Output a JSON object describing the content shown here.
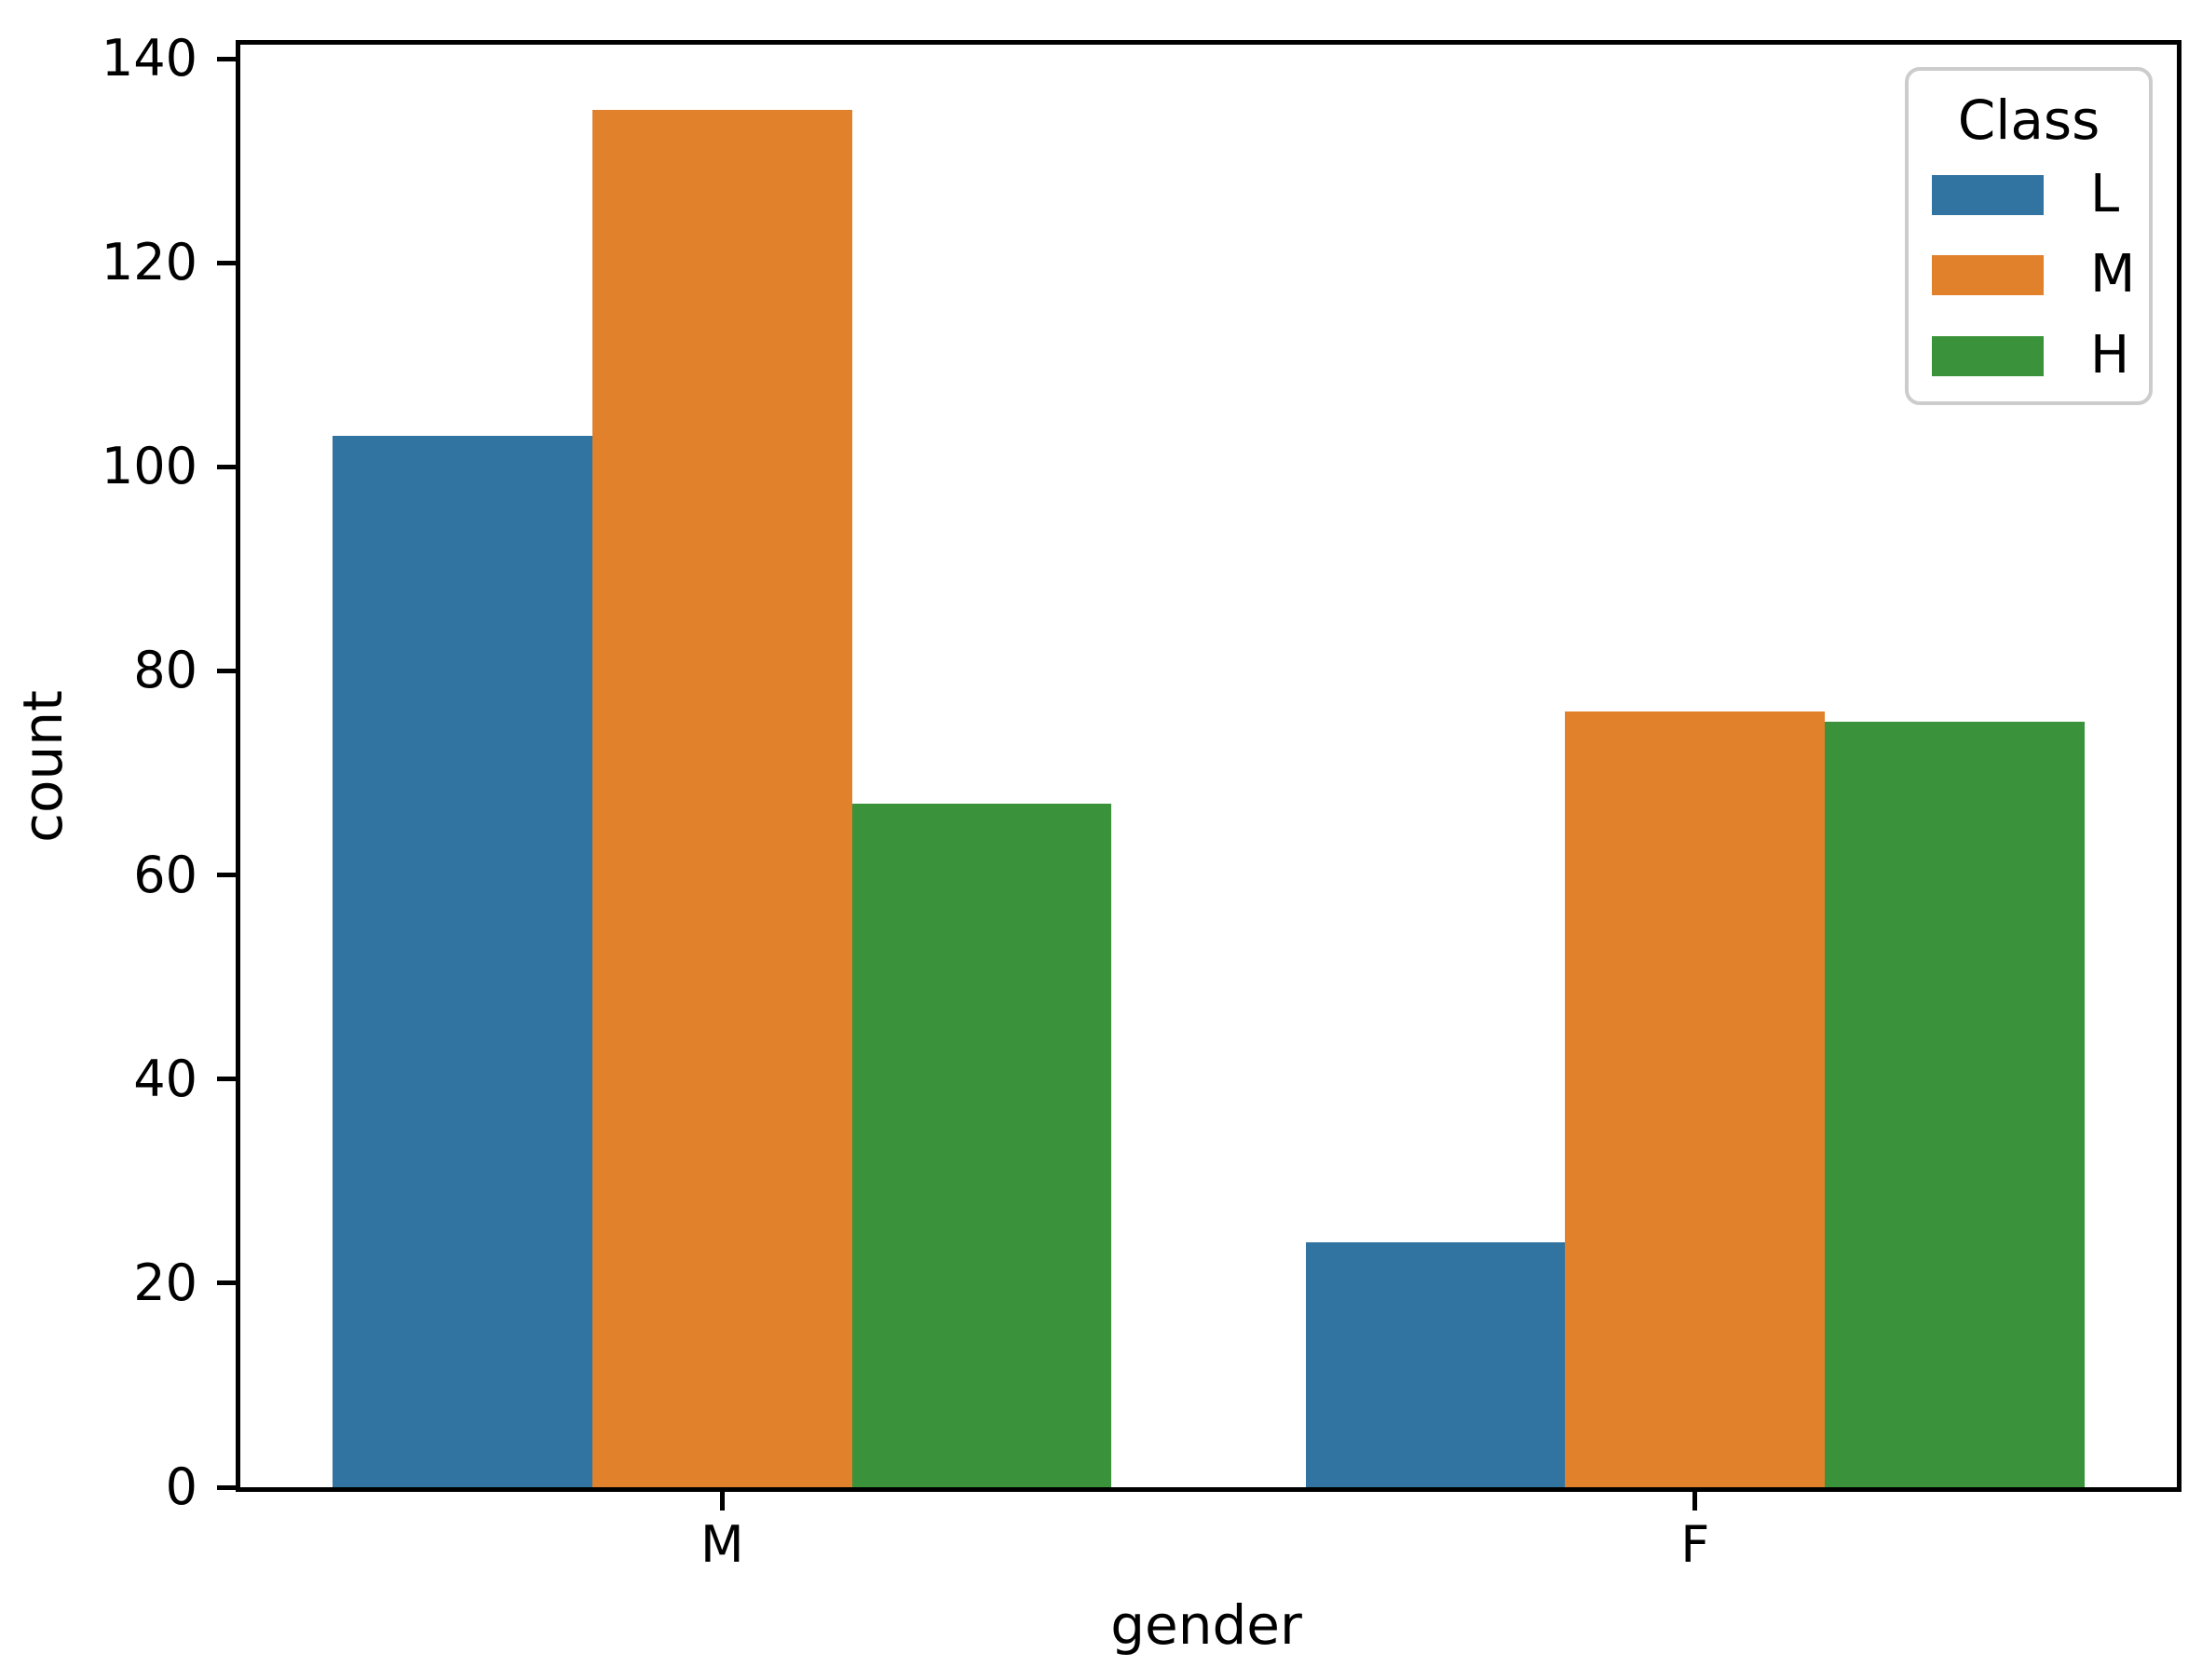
{
  "figure": {
    "background": "#ffffff",
    "axis_color": "#000000"
  },
  "chart_data": {
    "type": "bar",
    "categories": [
      "M",
      "F"
    ],
    "series": [
      {
        "name": "L",
        "color": "#3274a1",
        "values": [
          103,
          24
        ]
      },
      {
        "name": "M",
        "color": "#e1812c",
        "values": [
          135,
          76
        ]
      },
      {
        "name": "H",
        "color": "#3a923a",
        "values": [
          67,
          75
        ]
      }
    ],
    "title": "",
    "xlabel": "gender",
    "ylabel": "count",
    "ylim": [
      0,
      141.8
    ],
    "yticks": [
      0,
      20,
      40,
      60,
      80,
      100,
      120,
      140
    ],
    "grid": false,
    "bar_group_width": 0.8,
    "legend": {
      "title": "Class",
      "position": "upper right",
      "entries": [
        "L",
        "M",
        "H"
      ],
      "border_color": "#cccccc"
    }
  }
}
